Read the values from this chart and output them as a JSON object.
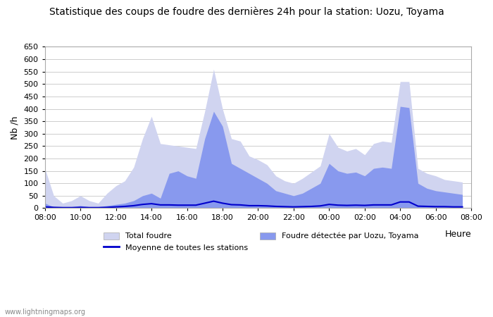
{
  "title": "Statistique des coups de foudre des dernières 24h pour la station: Uozu, Toyama",
  "xlabel": "Heure",
  "ylabel": "Nb /h",
  "ylim": [
    0,
    650
  ],
  "yticks": [
    0,
    50,
    100,
    150,
    200,
    250,
    300,
    350,
    400,
    450,
    500,
    550,
    600,
    650
  ],
  "xtick_labels": [
    "08:00",
    "10:00",
    "12:00",
    "14:00",
    "16:00",
    "18:00",
    "20:00",
    "22:00",
    "00:00",
    "02:00",
    "04:00",
    "06:00",
    "08:00"
  ],
  "background_color": "#ffffff",
  "plot_bg_color": "#ffffff",
  "grid_color": "#bbbbbb",
  "total_color": "#d0d4f0",
  "detected_color": "#8899ee",
  "mean_color": "#0000cc",
  "watermark": "www.lightningmaps.org",
  "total_foudre": [
    160,
    50,
    20,
    30,
    50,
    30,
    20,
    60,
    90,
    110,
    165,
    280,
    370,
    260,
    255,
    250,
    245,
    240,
    390,
    560,
    400,
    280,
    270,
    210,
    195,
    175,
    130,
    110,
    100,
    120,
    145,
    170,
    300,
    245,
    230,
    240,
    215,
    260,
    270,
    265,
    510,
    510,
    160,
    140,
    130,
    115,
    110,
    105
  ],
  "detected_foudre": [
    20,
    5,
    5,
    5,
    10,
    5,
    5,
    10,
    15,
    20,
    30,
    50,
    60,
    40,
    140,
    150,
    130,
    120,
    280,
    390,
    330,
    180,
    160,
    140,
    120,
    100,
    70,
    60,
    50,
    60,
    80,
    100,
    180,
    150,
    140,
    145,
    130,
    160,
    165,
    160,
    410,
    405,
    100,
    80,
    70,
    65,
    60,
    55
  ],
  "mean_line": [
    5,
    3,
    2,
    2,
    3,
    2,
    2,
    3,
    5,
    7,
    10,
    15,
    18,
    13,
    13,
    12,
    12,
    12,
    20,
    28,
    20,
    14,
    13,
    10,
    10,
    9,
    7,
    6,
    5,
    6,
    7,
    9,
    15,
    12,
    11,
    12,
    11,
    13,
    13,
    13,
    25,
    25,
    8,
    7,
    6,
    6,
    5,
    5
  ]
}
